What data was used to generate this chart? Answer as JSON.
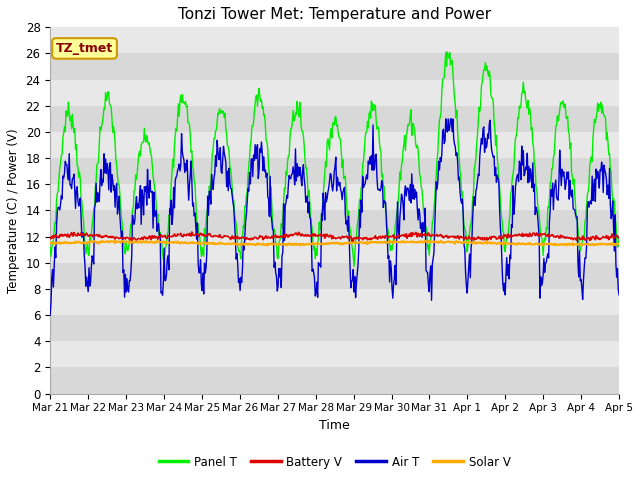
{
  "title": "Tonzi Tower Met: Temperature and Power",
  "xlabel": "Time",
  "ylabel": "Temperature (C) / Power (V)",
  "annotation": "TZ_tmet",
  "ylim": [
    0,
    28
  ],
  "yticks": [
    0,
    2,
    4,
    6,
    8,
    10,
    12,
    14,
    16,
    18,
    20,
    22,
    24,
    26,
    28
  ],
  "xtick_labels": [
    "Mar 21",
    "Mar 22",
    "Mar 23",
    "Mar 24",
    "Mar 25",
    "Mar 26",
    "Mar 27",
    "Mar 28",
    "Mar 29",
    "Mar 30",
    "Mar 31",
    "Apr 1",
    "Apr 2",
    "Apr 3",
    "Apr 4",
    "Apr 5"
  ],
  "legend_labels": [
    "Panel T",
    "Battery V",
    "Air T",
    "Solar V"
  ],
  "colors": {
    "panel_t": "#00ee00",
    "battery_v": "#dd0000",
    "air_t": "#0000cc",
    "solar_v": "#ffaa00"
  },
  "fig_bg_color": "#ffffff",
  "plot_bg_color": "#e8e8e8",
  "band_light": "#e8e8e8",
  "band_dark": "#d8d8d8",
  "grid_color": "#ffffff",
  "title_fontsize": 11,
  "annotation_color": "#880000",
  "annotation_bg": "#ffff99",
  "annotation_border": "#cc9900",
  "figsize": [
    6.4,
    4.8
  ],
  "dpi": 100
}
